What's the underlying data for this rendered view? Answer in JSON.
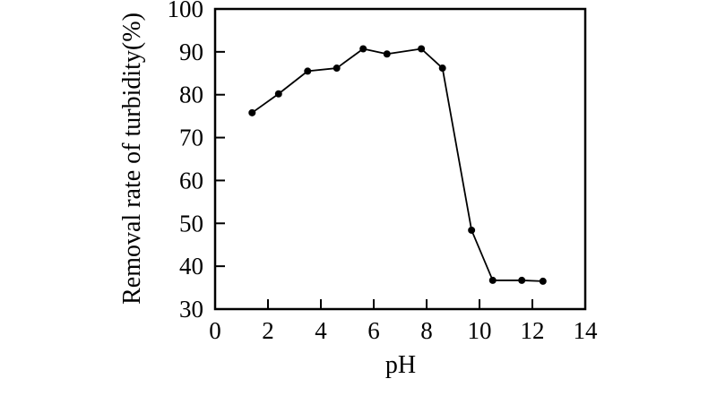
{
  "chart_data": {
    "type": "line",
    "title": "",
    "xlabel": "pH",
    "ylabel": "Removal rate of turbidity(%)",
    "series": [
      {
        "name": "Removal rate of turbidity",
        "x": [
          1.4,
          2.4,
          3.5,
          4.6,
          5.6,
          6.5,
          7.8,
          8.6,
          9.7,
          10.5,
          11.6,
          12.4
        ],
        "y": [
          75.8,
          80.2,
          85.5,
          86.2,
          90.7,
          89.5,
          90.7,
          86.2,
          48.4,
          36.7,
          36.7,
          36.5
        ]
      }
    ],
    "xlim": [
      0,
      14
    ],
    "ylim": [
      30,
      100
    ],
    "x_ticks": [
      0,
      2,
      4,
      6,
      8,
      10,
      12,
      14
    ],
    "y_ticks": [
      30,
      40,
      50,
      60,
      70,
      80,
      90,
      100
    ],
    "grid": false,
    "legend": false,
    "marker": "filled-circle",
    "ink_color": "#000000",
    "background_color": "#ffffff"
  }
}
